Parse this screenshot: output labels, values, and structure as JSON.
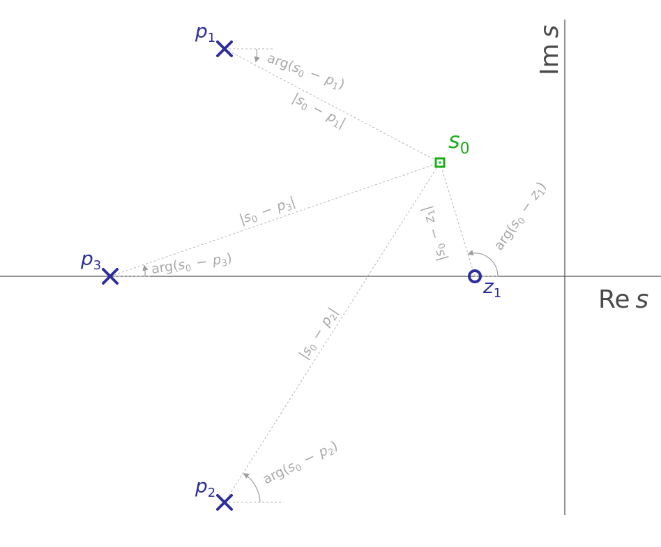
{
  "axes": {
    "real_label": {
      "main": "Re",
      "var": "s"
    },
    "imag_label": {
      "main": "Im",
      "var": "s"
    }
  },
  "colors": {
    "pole_zero": "#2e2e9a",
    "test_point": "#1aae1a",
    "guide": "#b4b4b4",
    "axis": "#555555"
  },
  "test_point": {
    "name": "s",
    "sub": "0",
    "marker": "square"
  },
  "poles": [
    {
      "id": "p1",
      "name": "p",
      "sub": "1",
      "marker": "cross"
    },
    {
      "id": "p2",
      "name": "p",
      "sub": "2",
      "marker": "cross"
    },
    {
      "id": "p3",
      "name": "p",
      "sub": "3",
      "marker": "cross"
    }
  ],
  "zeros": [
    {
      "id": "z1",
      "name": "z",
      "sub": "1",
      "marker": "circle"
    }
  ],
  "magnitude_labels": {
    "p1": {
      "a": "s",
      "as": "0",
      "b": "p",
      "bs": "1"
    },
    "p2": {
      "a": "s",
      "as": "0",
      "b": "p",
      "bs": "2"
    },
    "p3": {
      "a": "s",
      "as": "0",
      "b": "p",
      "bs": "3"
    },
    "z1": {
      "a": "s",
      "as": "0",
      "b": "z",
      "bs": "1"
    }
  },
  "angle_labels": {
    "p1": {
      "fn": "arg",
      "a": "s",
      "as": "0",
      "b": "p",
      "bs": "1"
    },
    "p2": {
      "fn": "arg",
      "a": "s",
      "as": "0",
      "b": "p",
      "bs": "2"
    },
    "p3": {
      "fn": "arg",
      "a": "s",
      "as": "0",
      "b": "p",
      "bs": "3"
    },
    "z1": {
      "fn": "arg",
      "a": "s",
      "as": "0",
      "b": "z",
      "bs": "1"
    }
  },
  "operator": "−"
}
